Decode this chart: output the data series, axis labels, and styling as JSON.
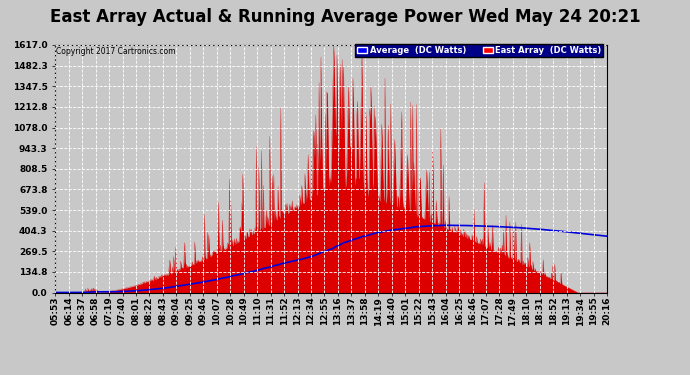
{
  "title": "East Array Actual & Running Average Power Wed May 24 20:21",
  "copyright": "Copyright 2017 Cartronics.com",
  "legend_avg": "Average  (DC Watts)",
  "legend_east": "East Array  (DC Watts)",
  "ymin": 0.0,
  "ymax": 1617.0,
  "yticks": [
    0.0,
    134.8,
    269.5,
    404.3,
    539.0,
    673.8,
    808.5,
    943.3,
    1078.0,
    1212.8,
    1347.5,
    1482.3,
    1617.0
  ],
  "bg_color": "#c8c8c8",
  "plot_bg_color": "#c8c8c8",
  "grid_color": "white",
  "red_color": "#dd0000",
  "blue_color": "#0000dd",
  "title_fontsize": 12,
  "tick_fontsize": 6.5,
  "xtick_labels": [
    "05:53",
    "06:14",
    "06:37",
    "06:58",
    "07:19",
    "07:40",
    "08:01",
    "08:22",
    "08:43",
    "09:04",
    "09:25",
    "09:46",
    "10:07",
    "10:28",
    "10:49",
    "11:10",
    "11:31",
    "11:52",
    "12:13",
    "12:34",
    "12:55",
    "13:16",
    "13:37",
    "13:58",
    "14:19",
    "14:40",
    "15:01",
    "15:22",
    "15:43",
    "16:04",
    "16:25",
    "16:46",
    "17:07",
    "17:28",
    "17:49",
    "18:10",
    "18:31",
    "18:52",
    "19:13",
    "19:34",
    "19:55",
    "20:16"
  ]
}
